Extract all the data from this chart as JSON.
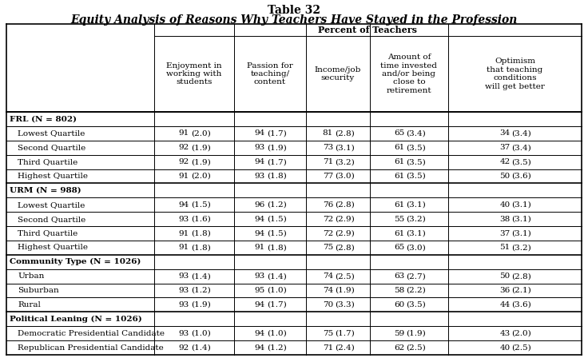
{
  "title1": "Table 32",
  "title2": "Equity Analysis of Reasons Why Teachers Have Stayed in the Profession",
  "col_header_top": "Percent of Teachers",
  "col_headers": [
    "Enjoyment in\nworking with\nstudents",
    "Passion for\nteaching/\ncontent",
    "Income/job\nsecurity",
    "Amount of\ntime invested\nand/or being\nclose to\nretirement",
    "Optimism\nthat teaching\nconditions\nwill get better"
  ],
  "sections": [
    {
      "header": "FRL (N = 802)",
      "rows": [
        {
          "label": "Lowest Quartile",
          "vals": [
            [
              "91",
              "(2.0)"
            ],
            [
              "94",
              "(1.7)"
            ],
            [
              "81",
              "(2.8)"
            ],
            [
              "65",
              "(3.4)"
            ],
            [
              "34",
              "(3.4)"
            ]
          ]
        },
        {
          "label": "Second Quartile",
          "vals": [
            [
              "92",
              "(1.9)"
            ],
            [
              "93",
              "(1.9)"
            ],
            [
              "73",
              "(3.1)"
            ],
            [
              "61",
              "(3.5)"
            ],
            [
              "37",
              "(3.4)"
            ]
          ]
        },
        {
          "label": "Third Quartile",
          "vals": [
            [
              "92",
              "(1.9)"
            ],
            [
              "94",
              "(1.7)"
            ],
            [
              "71",
              "(3.2)"
            ],
            [
              "61",
              "(3.5)"
            ],
            [
              "42",
              "(3.5)"
            ]
          ]
        },
        {
          "label": "Highest Quartile",
          "vals": [
            [
              "91",
              "(2.0)"
            ],
            [
              "93",
              "(1.8)"
            ],
            [
              "77",
              "(3.0)"
            ],
            [
              "61",
              "(3.5)"
            ],
            [
              "50",
              "(3.6)"
            ]
          ]
        }
      ]
    },
    {
      "header": "URM (N = 988)",
      "rows": [
        {
          "label": "Lowest Quartile",
          "vals": [
            [
              "94",
              "(1.5)"
            ],
            [
              "96",
              "(1.2)"
            ],
            [
              "76",
              "(2.8)"
            ],
            [
              "61",
              "(3.1)"
            ],
            [
              "40",
              "(3.1)"
            ]
          ]
        },
        {
          "label": "Second Quartile",
          "vals": [
            [
              "93",
              "(1.6)"
            ],
            [
              "94",
              "(1.5)"
            ],
            [
              "72",
              "(2.9)"
            ],
            [
              "55",
              "(3.2)"
            ],
            [
              "38",
              "(3.1)"
            ]
          ]
        },
        {
          "label": "Third Quartile",
          "vals": [
            [
              "91",
              "(1.8)"
            ],
            [
              "94",
              "(1.5)"
            ],
            [
              "72",
              "(2.9)"
            ],
            [
              "61",
              "(3.1)"
            ],
            [
              "37",
              "(3.1)"
            ]
          ]
        },
        {
          "label": "Highest Quartile",
          "vals": [
            [
              "91",
              "(1.8)"
            ],
            [
              "91",
              "(1.8)"
            ],
            [
              "75",
              "(2.8)"
            ],
            [
              "65",
              "(3.0)"
            ],
            [
              "51",
              "(3.2)"
            ]
          ]
        }
      ]
    },
    {
      "header": "Community Type (N = 1026)",
      "rows": [
        {
          "label": "Urban",
          "vals": [
            [
              "93",
              "(1.4)"
            ],
            [
              "93",
              "(1.4)"
            ],
            [
              "74",
              "(2.5)"
            ],
            [
              "63",
              "(2.7)"
            ],
            [
              "50",
              "(2.8)"
            ]
          ]
        },
        {
          "label": "Suburban",
          "vals": [
            [
              "93",
              "(1.2)"
            ],
            [
              "95",
              "(1.0)"
            ],
            [
              "74",
              "(1.9)"
            ],
            [
              "58",
              "(2.2)"
            ],
            [
              "36",
              "(2.1)"
            ]
          ]
        },
        {
          "label": "Rural",
          "vals": [
            [
              "93",
              "(1.9)"
            ],
            [
              "94",
              "(1.7)"
            ],
            [
              "70",
              "(3.3)"
            ],
            [
              "60",
              "(3.5)"
            ],
            [
              "44",
              "(3.6)"
            ]
          ]
        }
      ]
    },
    {
      "header": "Political Leaning (N = 1026)",
      "rows": [
        {
          "label": "Democratic Presidential Candidate",
          "vals": [
            [
              "93",
              "(1.0)"
            ],
            [
              "94",
              "(1.0)"
            ],
            [
              "75",
              "(1.7)"
            ],
            [
              "59",
              "(1.9)"
            ],
            [
              "43",
              "(2.0)"
            ]
          ]
        },
        {
          "label": "Republican Presidential Candidate",
          "vals": [
            [
              "92",
              "(1.4)"
            ],
            [
              "94",
              "(1.2)"
            ],
            [
              "71",
              "(2.4)"
            ],
            [
              "62",
              "(2.5)"
            ],
            [
              "40",
              "(2.5)"
            ]
          ]
        }
      ]
    }
  ],
  "bg_color": "#ffffff",
  "title_fontsize": 10,
  "header_fontsize": 8,
  "cell_fontsize": 7.5,
  "col_header_fontsize": 7.5
}
